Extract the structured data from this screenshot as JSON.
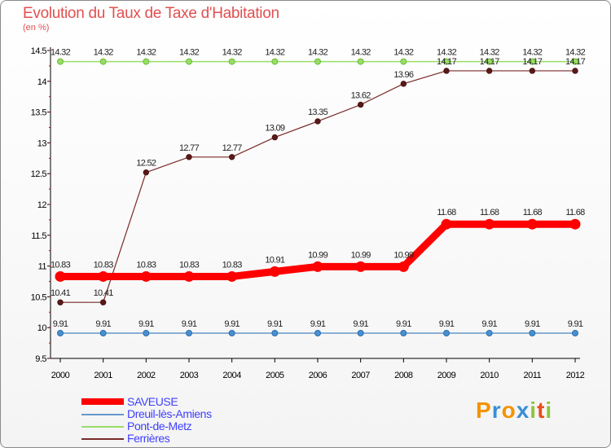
{
  "header": {
    "title": "Evolution du Taux de Taxe d'Habitation",
    "subtitle": "(en %)"
  },
  "logo": {
    "letters": [
      "P",
      "r",
      "o",
      "x",
      "i",
      "t",
      "i"
    ],
    "colors": [
      "#f29400",
      "#3a8fd6",
      "#f29400",
      "#3a8fd6",
      "#8cc63f",
      "#e94e1b",
      "#8cc63f"
    ]
  },
  "chart_data": {
    "type": "line",
    "x": [
      "2000",
      "2001",
      "2002",
      "2003",
      "2004",
      "2005",
      "2006",
      "2007",
      "2008",
      "2009",
      "2010",
      "2011",
      "2012"
    ],
    "ylim": [
      9.5,
      14.5
    ],
    "yticks": [
      9.5,
      10,
      10.5,
      11,
      11.5,
      12,
      12.5,
      13,
      13.5,
      14,
      14.5
    ],
    "yticklabels": [
      "9.5",
      "10",
      "10.5",
      "11",
      "11.5",
      "12",
      "12.5",
      "13",
      "13.5",
      "14",
      "14.5"
    ],
    "grid": false,
    "legend_placement": "bottom-left",
    "series": [
      {
        "name": "SAVEUSE",
        "color": "#ff0000",
        "values": [
          10.83,
          10.83,
          10.83,
          10.83,
          10.83,
          10.91,
          10.99,
          10.99,
          10.99,
          11.68,
          11.68,
          11.68,
          11.68
        ],
        "labels": [
          "10.83",
          "10.83",
          "10.83",
          "10.83",
          "10.83",
          "10.91",
          "10.99",
          "10.99",
          "10.99",
          "11.68",
          "11.68",
          "11.68",
          "11.68"
        ]
      },
      {
        "name": "Dreuil-lès-Amiens",
        "color": "#6699cc",
        "values": [
          9.91,
          9.91,
          9.91,
          9.91,
          9.91,
          9.91,
          9.91,
          9.91,
          9.91,
          9.91,
          9.91,
          9.91,
          9.91
        ],
        "labels": [
          "9.91",
          "9.91",
          "9.91",
          "9.91",
          "9.91",
          "9.91",
          "9.91",
          "9.91",
          "9.91",
          "9.91",
          "9.91",
          "9.91",
          "9.91"
        ]
      },
      {
        "name": "Pont-de-Metz",
        "color": "#99dd66",
        "values": [
          14.32,
          14.32,
          14.32,
          14.32,
          14.32,
          14.32,
          14.32,
          14.32,
          14.32,
          14.32,
          14.32,
          14.32,
          14.32
        ],
        "labels": [
          "14.32",
          "14.32",
          "14.32",
          "14.32",
          "14.32",
          "14.32",
          "14.32",
          "14.32",
          "14.32",
          "14.32",
          "14.32",
          "14.32",
          "14.32"
        ]
      },
      {
        "name": "Ferrières",
        "color": "#7a2a2a",
        "values": [
          10.41,
          10.41,
          12.52,
          12.77,
          12.77,
          13.09,
          13.35,
          13.62,
          13.96,
          14.17,
          14.17,
          14.17,
          14.17
        ],
        "labels": [
          "10.41",
          "10.41",
          "12.52",
          "12.77",
          "12.77",
          "13.09",
          "13.35",
          "13.62",
          "13.96",
          "14.17",
          "14.17",
          "14.17",
          "14.17"
        ]
      }
    ]
  }
}
